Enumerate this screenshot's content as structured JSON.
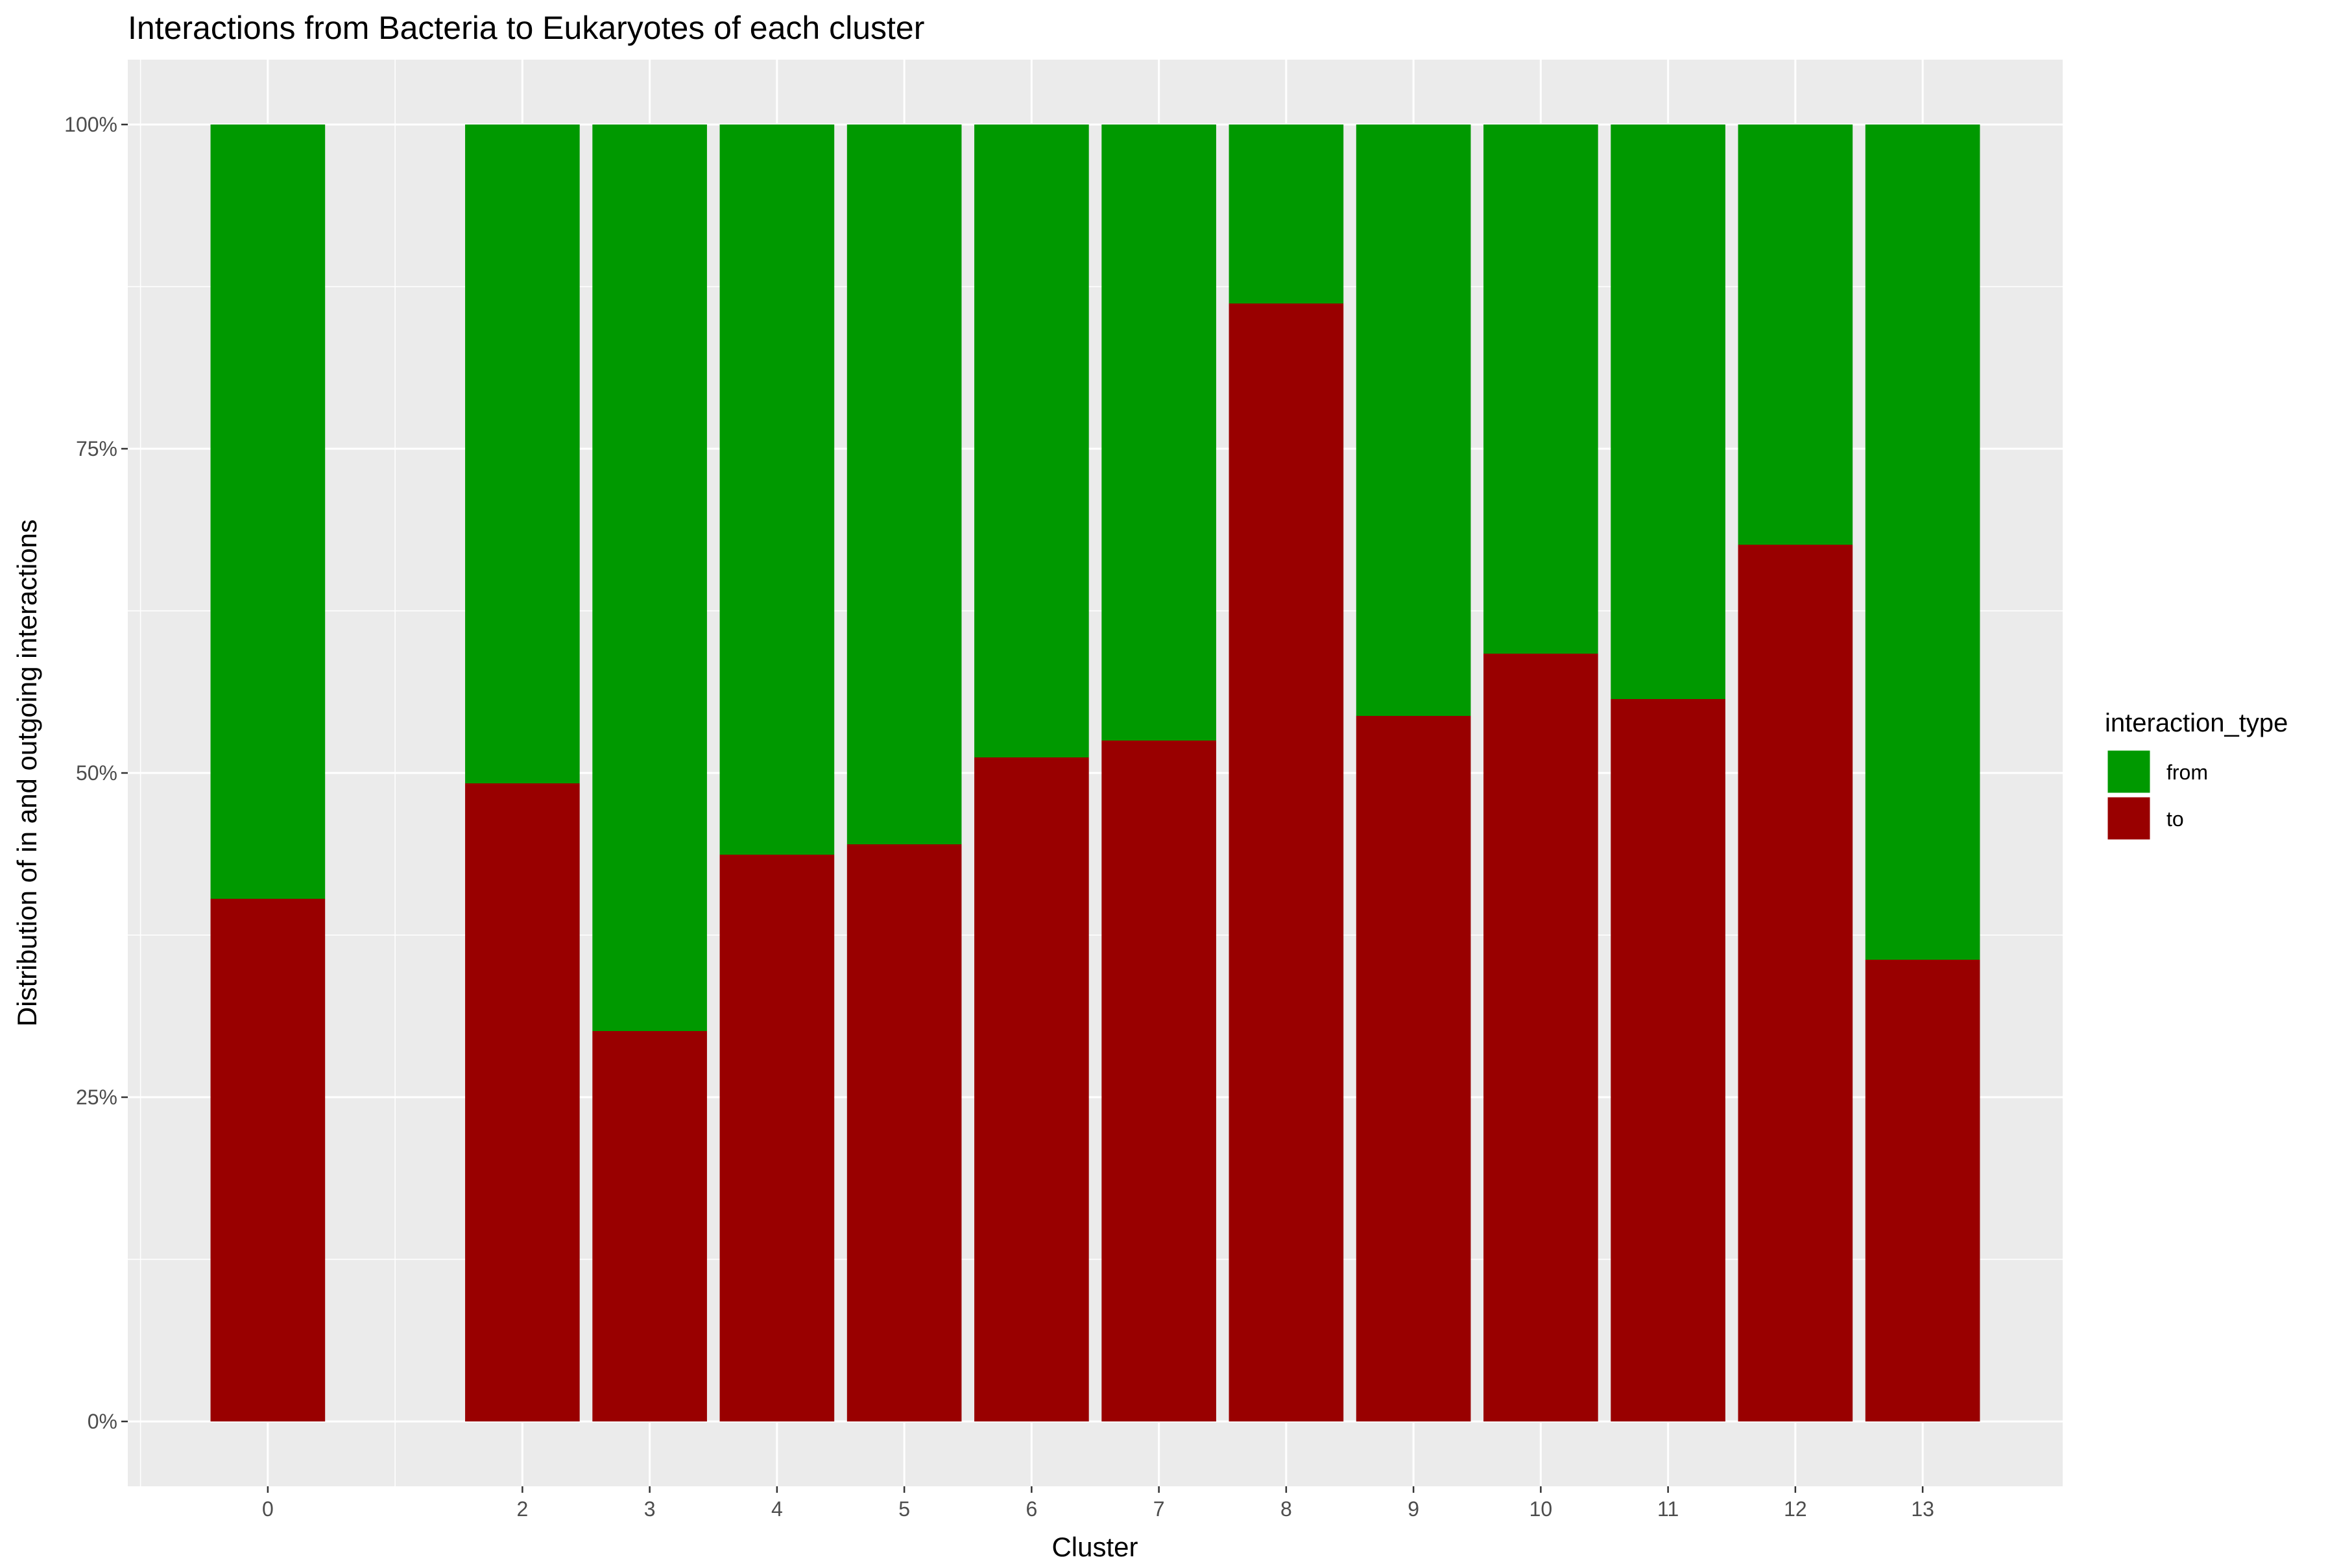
{
  "chart_data": {
    "type": "bar",
    "stacked": true,
    "title": "Interactions from Bacteria to Eukaryotes of each cluster",
    "xlabel": "Cluster",
    "ylabel": "Distribution of in and outgoing interactions",
    "x_ticks": [
      "0",
      "2",
      "3",
      "4",
      "5",
      "6",
      "7",
      "8",
      "9",
      "10",
      "11",
      "12",
      "13"
    ],
    "x_values": [
      0,
      2,
      3,
      4,
      5,
      6,
      7,
      8,
      9,
      10,
      11,
      12,
      13
    ],
    "xlim": [
      -1.1,
      14.1
    ],
    "y_ticks": [
      "0%",
      "25%",
      "50%",
      "75%",
      "100%"
    ],
    "ylim": [
      -0.05,
      1.05
    ],
    "grid": true,
    "legend": {
      "title": "interaction_type",
      "position": "right",
      "entries": [
        "from",
        "to"
      ]
    },
    "colors": {
      "from": "#009900",
      "to": "#990000",
      "panel": "#ebebeb",
      "grid": "#ffffff"
    },
    "series": [
      {
        "name": "to",
        "values": [
          0.403,
          0.492,
          0.301,
          0.437,
          0.445,
          0.512,
          0.525,
          0.862,
          0.544,
          0.592,
          0.557,
          0.676,
          0.356
        ]
      },
      {
        "name": "from",
        "values": [
          0.597,
          0.508,
          0.699,
          0.563,
          0.555,
          0.488,
          0.475,
          0.138,
          0.456,
          0.408,
          0.443,
          0.324,
          0.644
        ]
      }
    ]
  }
}
